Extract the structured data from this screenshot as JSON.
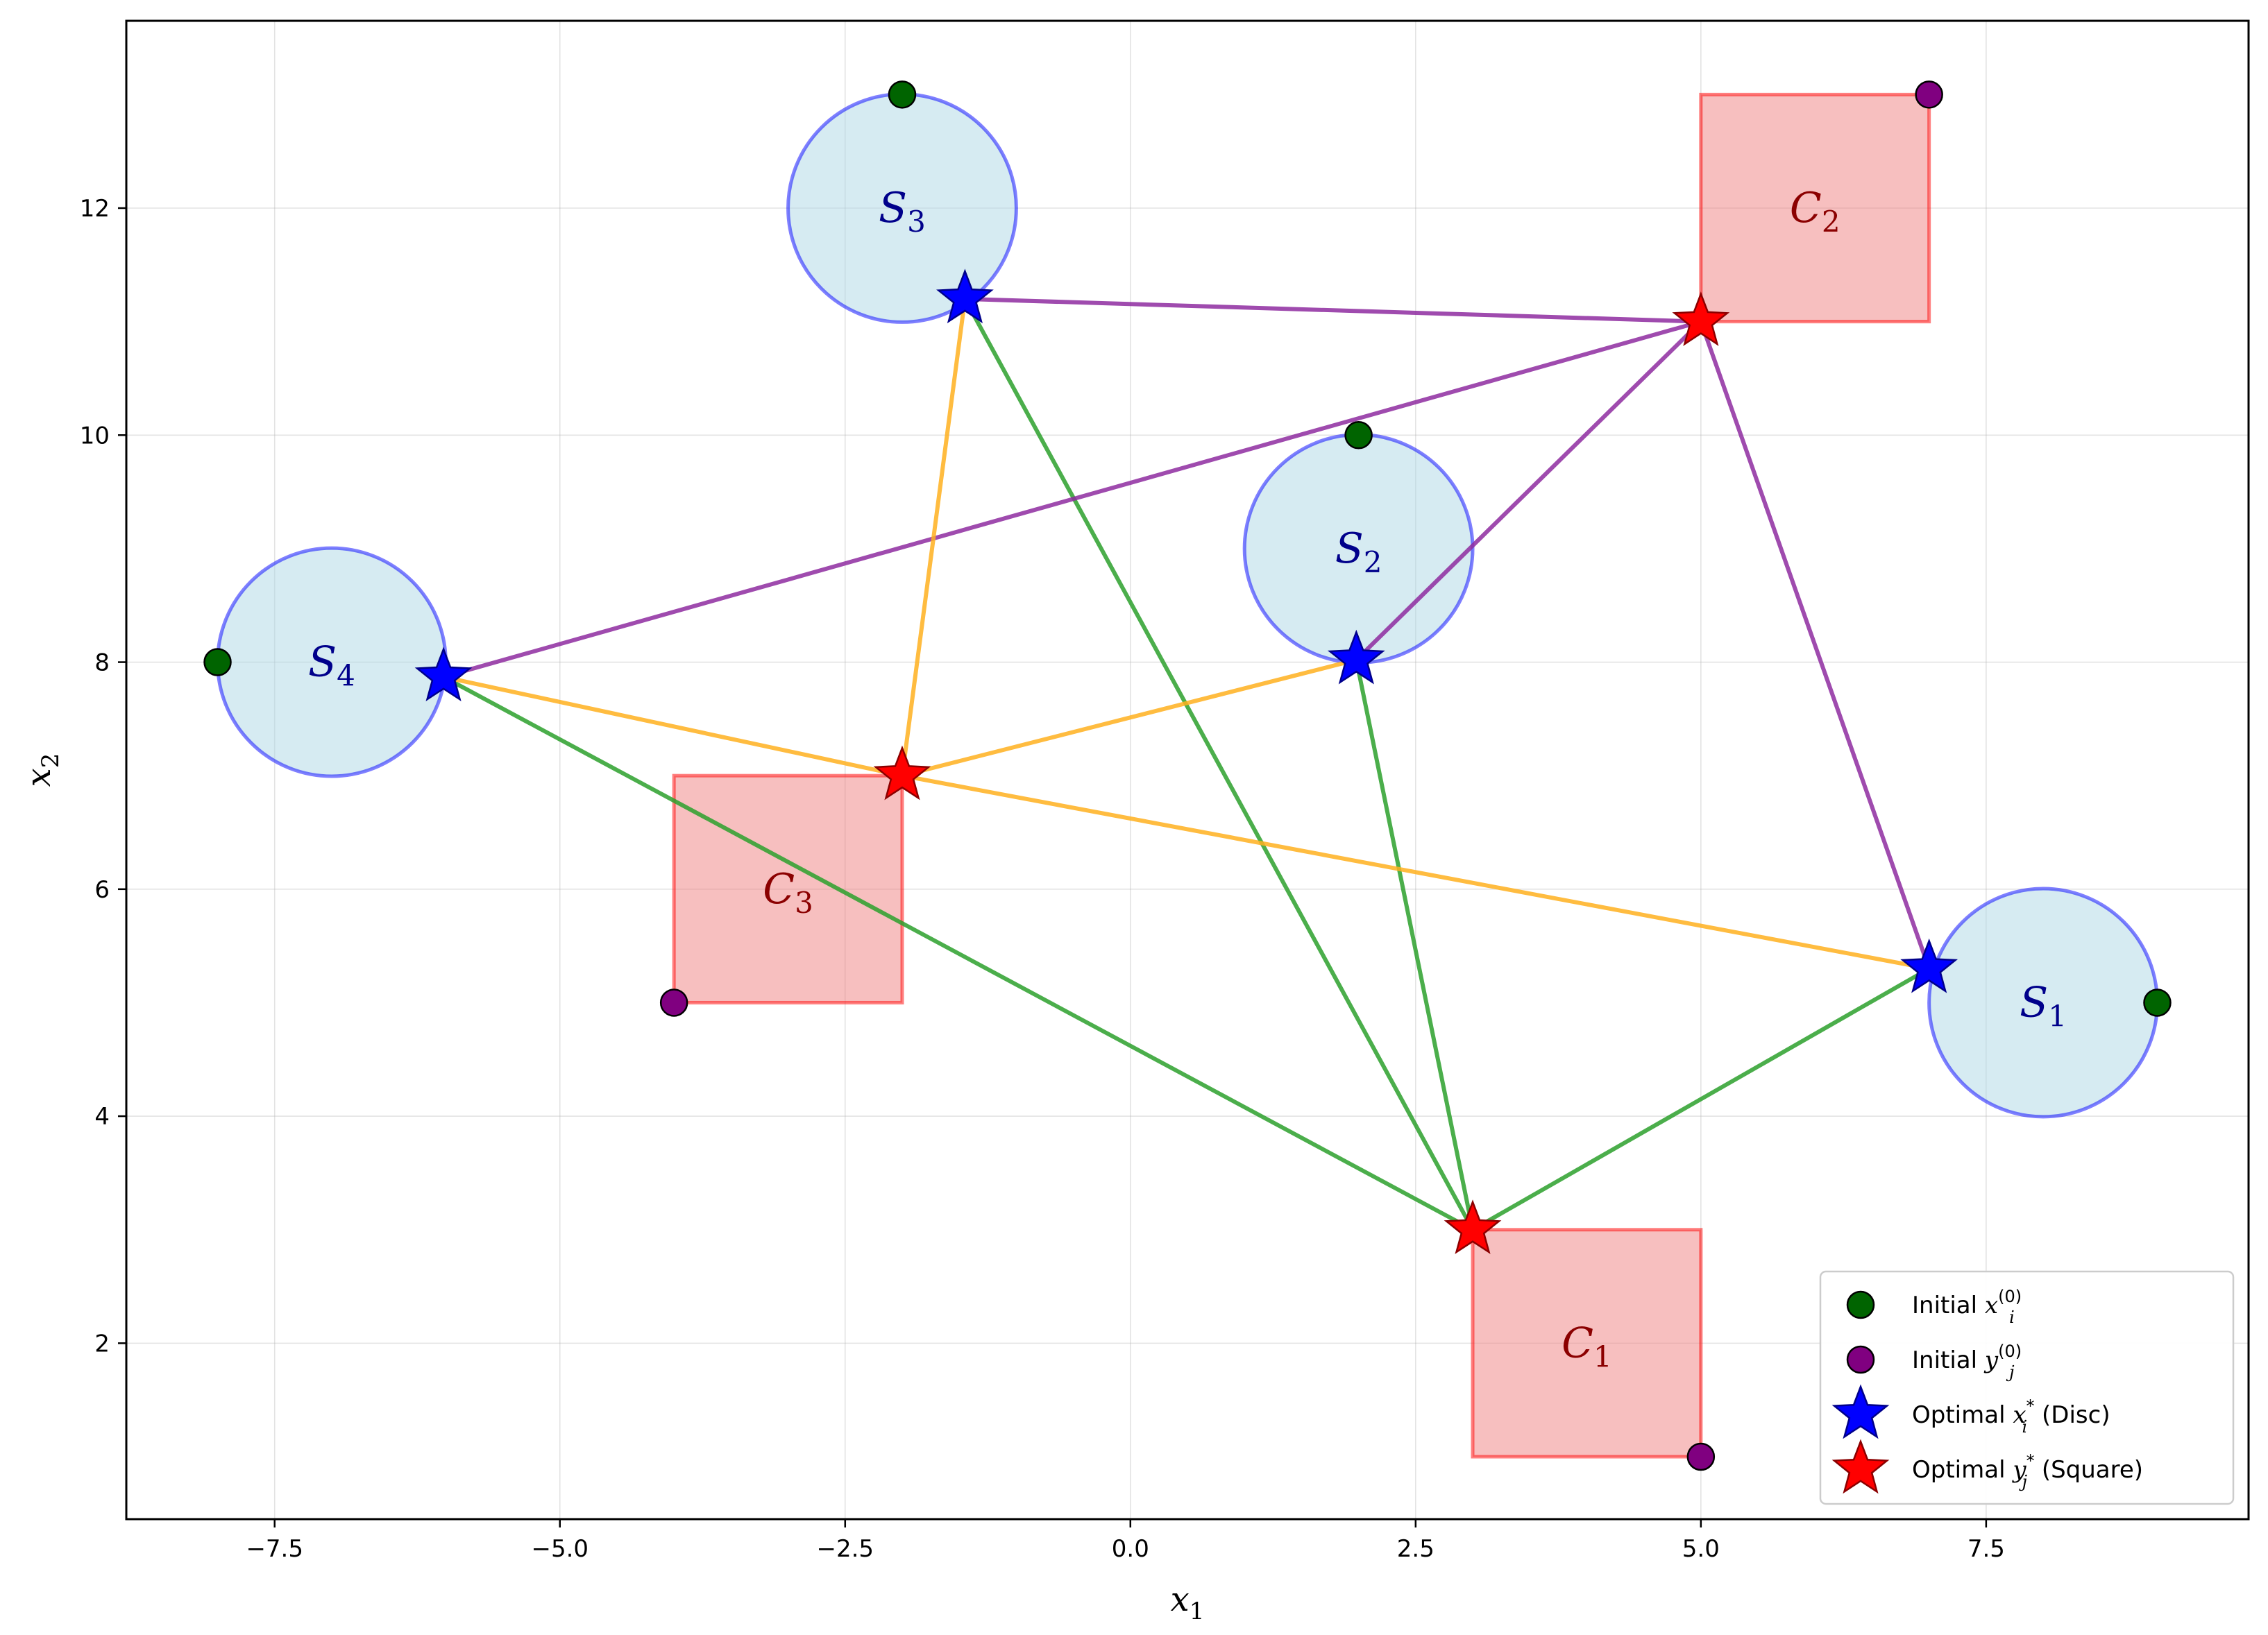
{
  "colors": {
    "disc_fill": "#add8e6",
    "disc_edge": "#0000ff",
    "square_fill": "#f08080",
    "square_edge": "#ff0000",
    "initial_x": "#006400",
    "initial_y": "#800080",
    "optimal_x": "#0000ff",
    "optimal_y": "#ff0000",
    "edge_green": "#2ca02c",
    "edge_orange": "#ffb01f",
    "edge_purple": "#8e2ba0"
  },
  "chart_data": {
    "type": "scatter",
    "xlabel": "x",
    "xlabel_sub": "1",
    "ylabel": "x",
    "ylabel_sub": "2",
    "xlim": [
      -8.8,
      9.8
    ],
    "ylim": [
      0.45,
      13.65
    ],
    "xticks": [
      -7.5,
      -5.0,
      -2.5,
      0.0,
      2.5,
      5.0,
      7.5
    ],
    "xtick_labels": [
      "−7.5",
      "−5.0",
      "−2.5",
      "0.0",
      "2.5",
      "5.0",
      "7.5"
    ],
    "yticks": [
      2,
      4,
      6,
      8,
      10,
      12
    ],
    "ytick_labels": [
      "2",
      "4",
      "6",
      "8",
      "10",
      "12"
    ],
    "grid": true,
    "discs": [
      {
        "label": "S",
        "sub": "1",
        "cx": 8,
        "cy": 5,
        "r": 1
      },
      {
        "label": "S",
        "sub": "2",
        "cx": 2,
        "cy": 9,
        "r": 1
      },
      {
        "label": "S",
        "sub": "3",
        "cx": -2,
        "cy": 12,
        "r": 1
      },
      {
        "label": "S",
        "sub": "4",
        "cx": -7,
        "cy": 8,
        "r": 1
      }
    ],
    "squares": [
      {
        "label": "C",
        "sub": "1",
        "x0": 3,
        "y0": 1,
        "x1": 5,
        "y1": 3
      },
      {
        "label": "C",
        "sub": "2",
        "x0": 5,
        "y0": 11,
        "x1": 7,
        "y1": 13
      },
      {
        "label": "C",
        "sub": "3",
        "x0": -4,
        "y0": 5,
        "x1": -2,
        "y1": 7
      }
    ],
    "initial_x": [
      [
        9,
        5
      ],
      [
        2,
        10
      ],
      [
        -2,
        13
      ],
      [
        -8,
        8
      ]
    ],
    "initial_y": [
      [
        5,
        1
      ],
      [
        7,
        13
      ],
      [
        -4,
        5
      ]
    ],
    "optimal_x": [
      [
        7.0,
        5.3
      ],
      [
        1.98,
        8.02
      ],
      [
        -1.45,
        11.2
      ],
      [
        -6.02,
        7.87
      ]
    ],
    "optimal_y": [
      [
        3.0,
        3.0
      ],
      [
        5.0,
        11.0
      ],
      [
        -2.0,
        7.0
      ]
    ],
    "edges": [
      {
        "color": "edge_green",
        "from": [
          7.0,
          5.3
        ],
        "to": [
          3.0,
          3.0
        ]
      },
      {
        "color": "edge_green",
        "from": [
          1.98,
          8.02
        ],
        "to": [
          3.0,
          3.0
        ]
      },
      {
        "color": "edge_green",
        "from": [
          -1.45,
          11.2
        ],
        "to": [
          3.0,
          3.0
        ]
      },
      {
        "color": "edge_green",
        "from": [
          -6.02,
          7.87
        ],
        "to": [
          3.0,
          3.0
        ]
      },
      {
        "color": "edge_purple",
        "from": [
          7.0,
          5.3
        ],
        "to": [
          5.0,
          11.0
        ]
      },
      {
        "color": "edge_purple",
        "from": [
          1.98,
          8.02
        ],
        "to": [
          5.0,
          11.0
        ]
      },
      {
        "color": "edge_purple",
        "from": [
          -1.45,
          11.2
        ],
        "to": [
          5.0,
          11.0
        ]
      },
      {
        "color": "edge_purple",
        "from": [
          -6.02,
          7.87
        ],
        "to": [
          5.0,
          11.0
        ]
      },
      {
        "color": "edge_orange",
        "from": [
          7.0,
          5.3
        ],
        "to": [
          -2.0,
          7.0
        ]
      },
      {
        "color": "edge_orange",
        "from": [
          1.98,
          8.02
        ],
        "to": [
          -2.0,
          7.0
        ]
      },
      {
        "color": "edge_orange",
        "from": [
          -1.45,
          11.2
        ],
        "to": [
          -2.0,
          7.0
        ]
      },
      {
        "color": "edge_orange",
        "from": [
          -6.02,
          7.87
        ],
        "to": [
          -2.0,
          7.0
        ]
      }
    ],
    "legend": {
      "placement": "lower-right",
      "entries": [
        {
          "marker": "initial_x",
          "prefix": "Initial ",
          "var": "x",
          "sub": "i",
          "sup": "(0)",
          "suffix": ""
        },
        {
          "marker": "initial_y",
          "prefix": "Initial ",
          "var": "y",
          "sub": "j",
          "sup": "(0)",
          "suffix": ""
        },
        {
          "marker": "optimal_x",
          "prefix": "Optimal ",
          "var": "x",
          "sub": "i",
          "sup": "*",
          "suffix": " (Disc)"
        },
        {
          "marker": "optimal_y",
          "prefix": "Optimal ",
          "var": "y",
          "sub": "j",
          "sup": "*",
          "suffix": " (Square)"
        }
      ]
    }
  }
}
